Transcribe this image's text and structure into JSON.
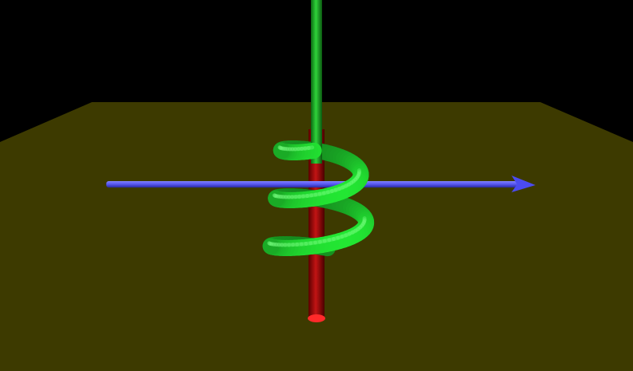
{
  "scene": {
    "background_color": "#000000",
    "ground_color": "#3d3a00",
    "axis_x_color": "#5b5bff",
    "axis_y_color": "#22c22a",
    "axis_z_color": "#b31010",
    "helix_color": "#14d12a",
    "helix_turns": 2.5
  }
}
